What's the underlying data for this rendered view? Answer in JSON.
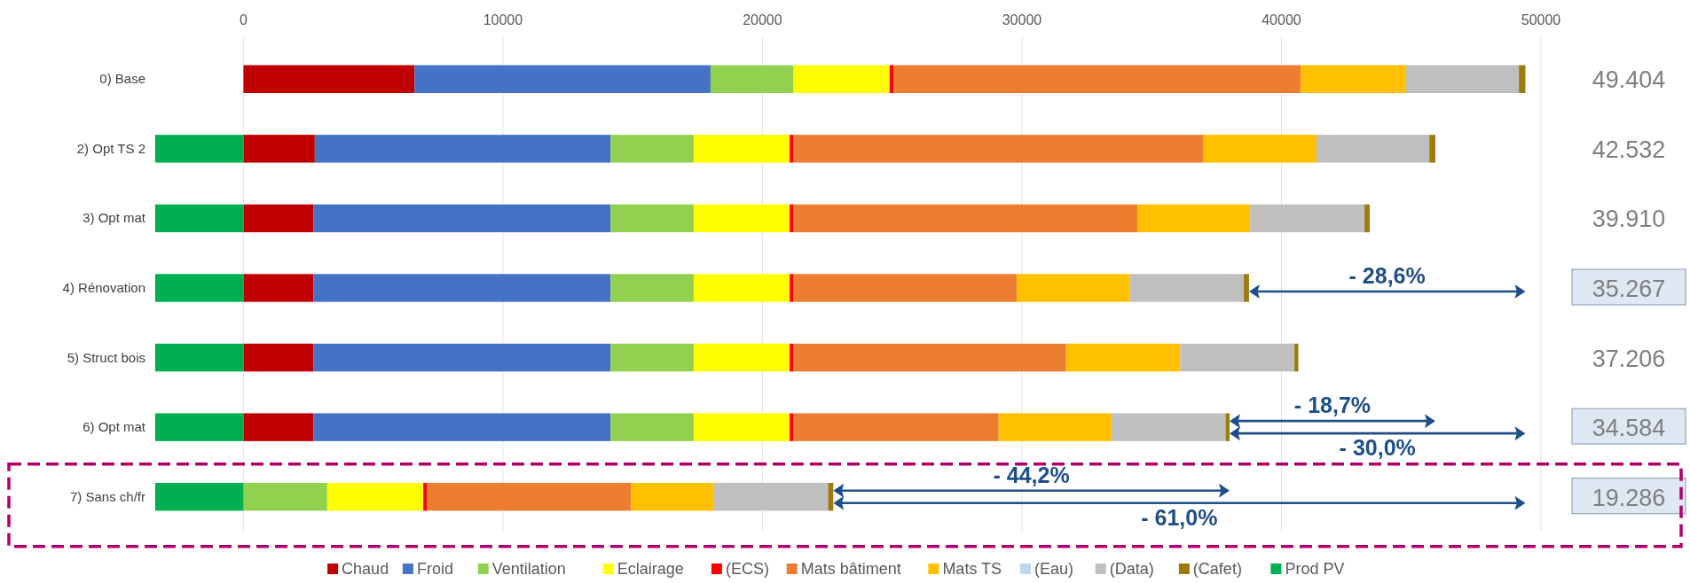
{
  "chart_data": {
    "type": "bar",
    "orientation": "horizontal",
    "stacked": true,
    "categories": [
      "0) Base",
      "2) Opt TS 2",
      "3) Opt mat",
      "4) Rénovation",
      "5) Struct bois",
      "6) Opt mat",
      "7) Sans ch/fr"
    ],
    "series": [
      {
        "name": "Chaud",
        "color": "#c00000",
        "values": [
          6600,
          2750,
          2700,
          2700,
          2700,
          2700,
          null
        ]
      },
      {
        "name": "Froid",
        "color": "#4472c4",
        "values": [
          11400,
          11400,
          11450,
          11450,
          11450,
          11450,
          null
        ]
      },
      {
        "name": "Ventilation",
        "color": "#92d050",
        "values": [
          3200,
          3200,
          3200,
          3200,
          3200,
          3200,
          3230
        ]
      },
      {
        "name": "Eclairage",
        "color": "#ffff00",
        "values": [
          3700,
          3700,
          3700,
          3700,
          3700,
          3700,
          3700
        ]
      },
      {
        "name": "(ECS)",
        "color": "#ff0000",
        "values": [
          150,
          150,
          150,
          150,
          150,
          150,
          150
        ]
      },
      {
        "name": "Mats bâtiment",
        "color": "#ed7d31",
        "values": [
          15700,
          15800,
          13250,
          8600,
          10500,
          7900,
          7850
        ]
      },
      {
        "name": "Mats TS",
        "color": "#ffc000",
        "values": [
          4050,
          4350,
          4350,
          4350,
          4400,
          4350,
          3200
        ]
      },
      {
        "name": "(Eau)",
        "color": "#bdd7ee",
        "values": [
          null,
          null,
          null,
          null,
          null,
          null,
          null
        ]
      },
      {
        "name": "(Data)",
        "color": "#bfbfbf",
        "values": [
          4350,
          4350,
          4400,
          4400,
          4400,
          4400,
          4400
        ]
      },
      {
        "name": "(Cafet)",
        "color": "#9c7a0c",
        "values": [
          250,
          230,
          200,
          200,
          150,
          150,
          200
        ]
      },
      {
        "name": "Prod PV",
        "color": "#00b050",
        "values": [
          null,
          -3400,
          -3400,
          -3400,
          -3400,
          -3400,
          -3400
        ]
      }
    ],
    "xlim": [
      -3500,
      50000
    ],
    "xticks": [
      0,
      10000,
      20000,
      30000,
      40000,
      50000
    ],
    "grid": "x",
    "legend": "bottom",
    "annotations": [
      "49.404",
      "42.532",
      "39.910",
      "35.267",
      "37.206",
      "34.584",
      "19.286",
      "- 28,6%",
      "- 18,7%",
      "- 30,0%",
      "- 44,2%",
      "- 61,0%"
    ]
  }
}
